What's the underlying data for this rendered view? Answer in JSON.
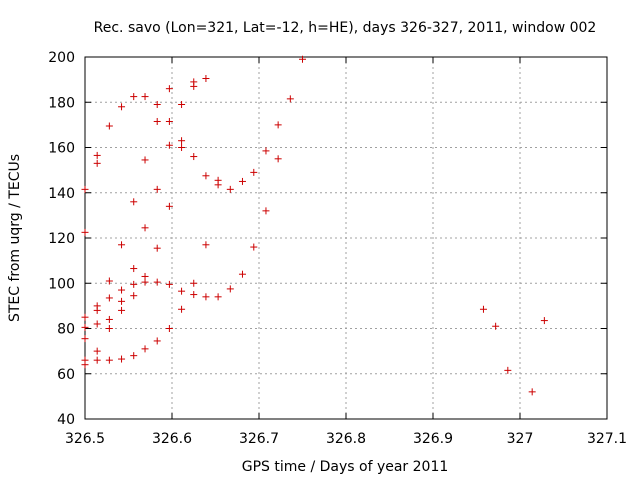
{
  "chart_data": {
    "type": "scatter",
    "title": "Rec. savo (Lon=321, Lat=-12, h=HE), days 326-327, 2011, window 002",
    "xlabel": "GPS time / Days of year 2011",
    "ylabel": "STEC from uqrg / TECUs",
    "xlim": [
      326.5,
      327.1
    ],
    "ylim": [
      40,
      200
    ],
    "xticks": [
      326.5,
      326.6,
      326.7,
      326.8,
      326.9,
      327,
      327.1
    ],
    "xtick_labels": [
      "326.5",
      "326.6",
      "326.7",
      "326.8",
      "326.9",
      "327",
      "327.1"
    ],
    "yticks": [
      40,
      60,
      80,
      100,
      120,
      140,
      160,
      180,
      200
    ],
    "ytick_labels": [
      "40",
      "60",
      "80",
      "100",
      "120",
      "140",
      "160",
      "180",
      "200"
    ],
    "grid": true,
    "marker": "plus",
    "marker_color": "#cc0000",
    "series": [
      {
        "points": [
          [
            326.5,
            141.5
          ],
          [
            326.5,
            122.5
          ],
          [
            326.5,
            85
          ],
          [
            326.5,
            80.5
          ],
          [
            326.5,
            75.5
          ],
          [
            326.5,
            66
          ],
          [
            326.5,
            64
          ],
          [
            326.514,
            156.5
          ],
          [
            326.514,
            153
          ],
          [
            326.514,
            90
          ],
          [
            326.514,
            88
          ],
          [
            326.514,
            82
          ],
          [
            326.514,
            70
          ],
          [
            326.514,
            66
          ],
          [
            326.528,
            169.5
          ],
          [
            326.528,
            101
          ],
          [
            326.528,
            93.5
          ],
          [
            326.528,
            84
          ],
          [
            326.528,
            80
          ],
          [
            326.528,
            66
          ],
          [
            326.542,
            178
          ],
          [
            326.542,
            117
          ],
          [
            326.542,
            97
          ],
          [
            326.542,
            92
          ],
          [
            326.542,
            88
          ],
          [
            326.542,
            66.5
          ],
          [
            326.556,
            182.5
          ],
          [
            326.556,
            136
          ],
          [
            326.556,
            106.5
          ],
          [
            326.556,
            99.5
          ],
          [
            326.556,
            94.5
          ],
          [
            326.556,
            68
          ],
          [
            326.569,
            182.5
          ],
          [
            326.569,
            154.5
          ],
          [
            326.569,
            124.5
          ],
          [
            326.569,
            103
          ],
          [
            326.569,
            100.5
          ],
          [
            326.569,
            71
          ],
          [
            326.583,
            179
          ],
          [
            326.583,
            171.5
          ],
          [
            326.583,
            141.5
          ],
          [
            326.583,
            115.5
          ],
          [
            326.583,
            100.5
          ],
          [
            326.583,
            74.5
          ],
          [
            326.597,
            186
          ],
          [
            326.597,
            171.5
          ],
          [
            326.597,
            161
          ],
          [
            326.597,
            134
          ],
          [
            326.597,
            99.5
          ],
          [
            326.597,
            80
          ],
          [
            326.611,
            179
          ],
          [
            326.611,
            163
          ],
          [
            326.611,
            160
          ],
          [
            326.611,
            96.5
          ],
          [
            326.611,
            88.5
          ],
          [
            326.625,
            189
          ],
          [
            326.625,
            187
          ],
          [
            326.625,
            156
          ],
          [
            326.625,
            100
          ],
          [
            326.625,
            95
          ],
          [
            326.639,
            190.5
          ],
          [
            326.639,
            147.5
          ],
          [
            326.639,
            117
          ],
          [
            326.639,
            94
          ],
          [
            326.653,
            145.5
          ],
          [
            326.653,
            143.5
          ],
          [
            326.653,
            94
          ],
          [
            326.667,
            141.5
          ],
          [
            326.667,
            97.5
          ],
          [
            326.681,
            145
          ],
          [
            326.681,
            104
          ],
          [
            326.694,
            149
          ],
          [
            326.694,
            116
          ],
          [
            326.708,
            158.5
          ],
          [
            326.708,
            132
          ],
          [
            326.722,
            170
          ],
          [
            326.722,
            155
          ],
          [
            326.736,
            181.5
          ],
          [
            326.75,
            199
          ],
          [
            326.958,
            88.5
          ],
          [
            326.972,
            81
          ],
          [
            326.986,
            61.5
          ],
          [
            327.014,
            52
          ],
          [
            327.028,
            83.5
          ]
        ]
      }
    ]
  }
}
